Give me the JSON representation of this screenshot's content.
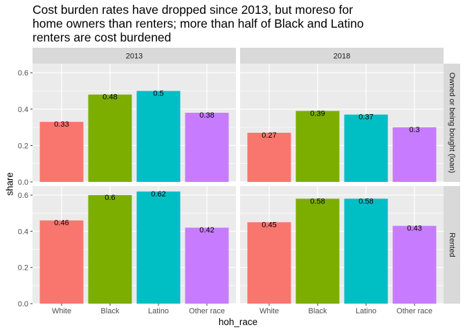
{
  "chart_data": {
    "type": "bar",
    "title": "Cost burden rates have dropped since 2013, but moreso for home owners than renters; more than half of Black and Latino renters are cost burdened",
    "title_lines": [
      "Cost burden rates have dropped since 2013, but moreso for",
      "home owners than renters; more than half of Black and Latino",
      "renters are cost burdened"
    ],
    "xlabel": "hoh_race",
    "ylabel": "share",
    "ylim": [
      0,
      0.65
    ],
    "yticks": [
      0.0,
      0.2,
      0.4,
      0.6
    ],
    "ytick_labels": [
      "0.0",
      "0.2",
      "0.4",
      "0.6"
    ],
    "categories": [
      "White",
      "Black",
      "Latino",
      "Other race"
    ],
    "colors": [
      "#F8766D",
      "#7CAE00",
      "#00BFC4",
      "#C77CFF"
    ],
    "facet_columns": [
      "2013",
      "2018"
    ],
    "facet_rows": [
      "Owned or being bought (loan)",
      "Rented"
    ],
    "panels": [
      {
        "column": "2013",
        "row": "Owned or being bought (loan)",
        "values": [
          0.33,
          0.48,
          0.5,
          0.38
        ],
        "labels": [
          "0.33",
          "0.48",
          "0.5",
          "0.38"
        ]
      },
      {
        "column": "2018",
        "row": "Owned or being bought (loan)",
        "values": [
          0.27,
          0.39,
          0.37,
          0.3
        ],
        "labels": [
          "0.27",
          "0.39",
          "0.37",
          "0.3"
        ]
      },
      {
        "column": "2013",
        "row": "Rented",
        "values": [
          0.46,
          0.6,
          0.62,
          0.42
        ],
        "labels": [
          "0.46",
          "0.6",
          "0.62",
          "0.42"
        ]
      },
      {
        "column": "2018",
        "row": "Rented",
        "values": [
          0.45,
          0.58,
          0.58,
          0.43
        ],
        "labels": [
          "0.45",
          "0.58",
          "0.58",
          "0.43"
        ]
      }
    ],
    "grid": true,
    "legend": "none"
  }
}
